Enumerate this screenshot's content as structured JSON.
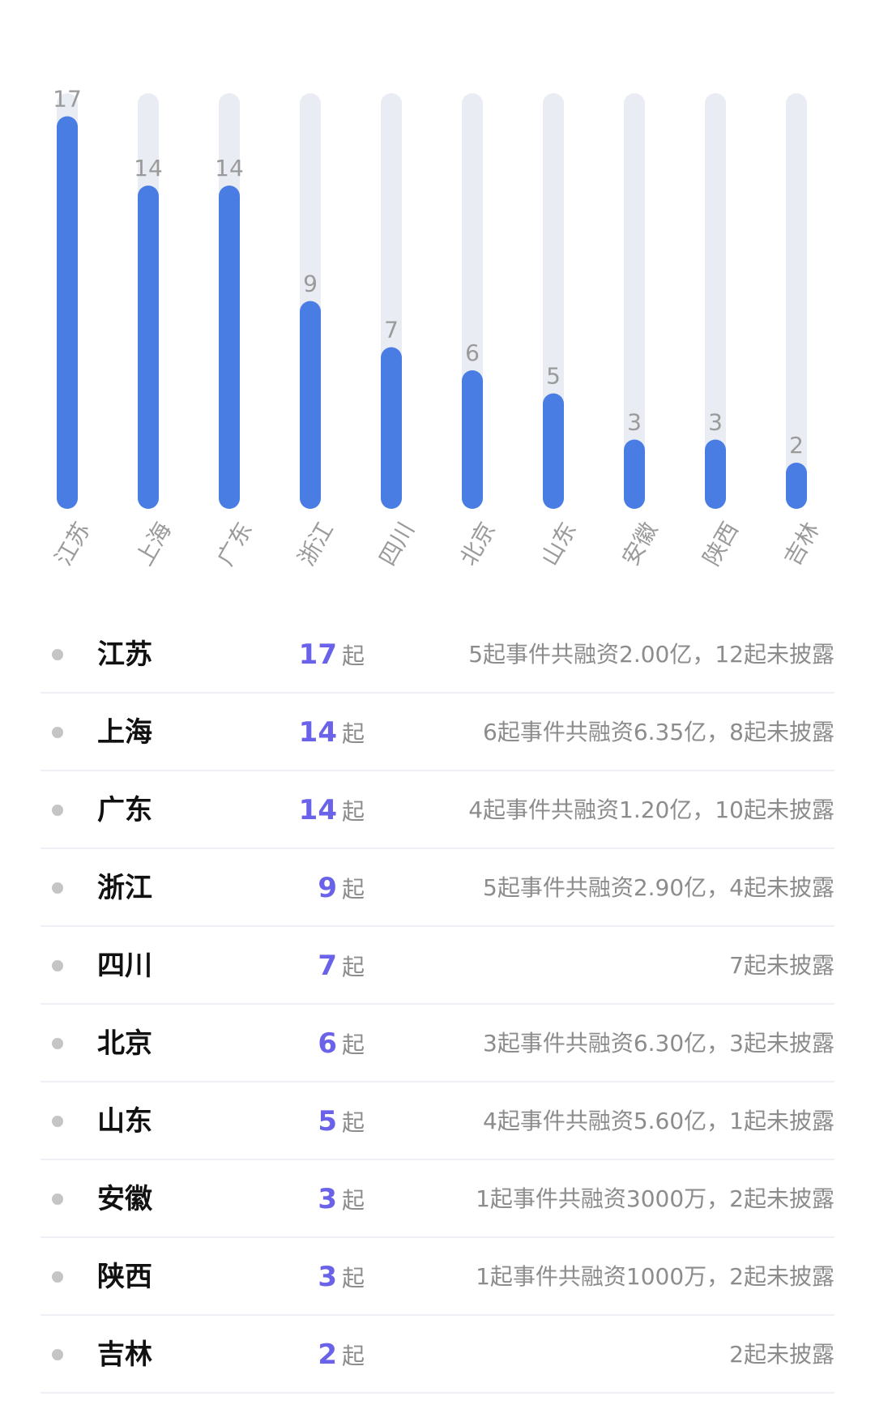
{
  "colors": {
    "bar": "#4a7de4",
    "track": "#eaecf3",
    "value_label": "#9a9a9a",
    "count_accent": "#6a62e8",
    "name_text": "#111111",
    "muted_text": "#8c8c8c",
    "bullet": "#c5c5c5",
    "divider": "#eef0f3"
  },
  "chart_data": {
    "type": "bar",
    "orientation": "vertical",
    "categories": [
      "江苏",
      "上海",
      "广东",
      "浙江",
      "四川",
      "北京",
      "山东",
      "安徽",
      "陕西",
      "吉林"
    ],
    "values": [
      17,
      14,
      14,
      9,
      7,
      6,
      5,
      3,
      3,
      2
    ],
    "ylim": [
      0,
      18
    ],
    "grid": false,
    "legend": "none",
    "data_labels": true,
    "xtick_rotation_deg": -60
  },
  "list": {
    "items": [
      {
        "name": "江苏",
        "count": "17",
        "unit": "起",
        "desc": "5起事件共融资2.00亿，12起未披露"
      },
      {
        "name": "上海",
        "count": "14",
        "unit": "起",
        "desc": "6起事件共融资6.35亿，8起未披露"
      },
      {
        "name": "广东",
        "count": "14",
        "unit": "起",
        "desc": "4起事件共融资1.20亿，10起未披露"
      },
      {
        "name": "浙江",
        "count": "9",
        "unit": "起",
        "desc": "5起事件共融资2.90亿，4起未披露"
      },
      {
        "name": "四川",
        "count": "7",
        "unit": "起",
        "desc": "7起未披露"
      },
      {
        "name": "北京",
        "count": "6",
        "unit": "起",
        "desc": "3起事件共融资6.30亿，3起未披露"
      },
      {
        "name": "山东",
        "count": "5",
        "unit": "起",
        "desc": "4起事件共融资5.60亿，1起未披露"
      },
      {
        "name": "安徽",
        "count": "3",
        "unit": "起",
        "desc": "1起事件共融资3000万，2起未披露"
      },
      {
        "name": "陕西",
        "count": "3",
        "unit": "起",
        "desc": "1起事件共融资1000万，2起未披露"
      },
      {
        "name": "吉林",
        "count": "2",
        "unit": "起",
        "desc": "2起未披露"
      }
    ]
  }
}
